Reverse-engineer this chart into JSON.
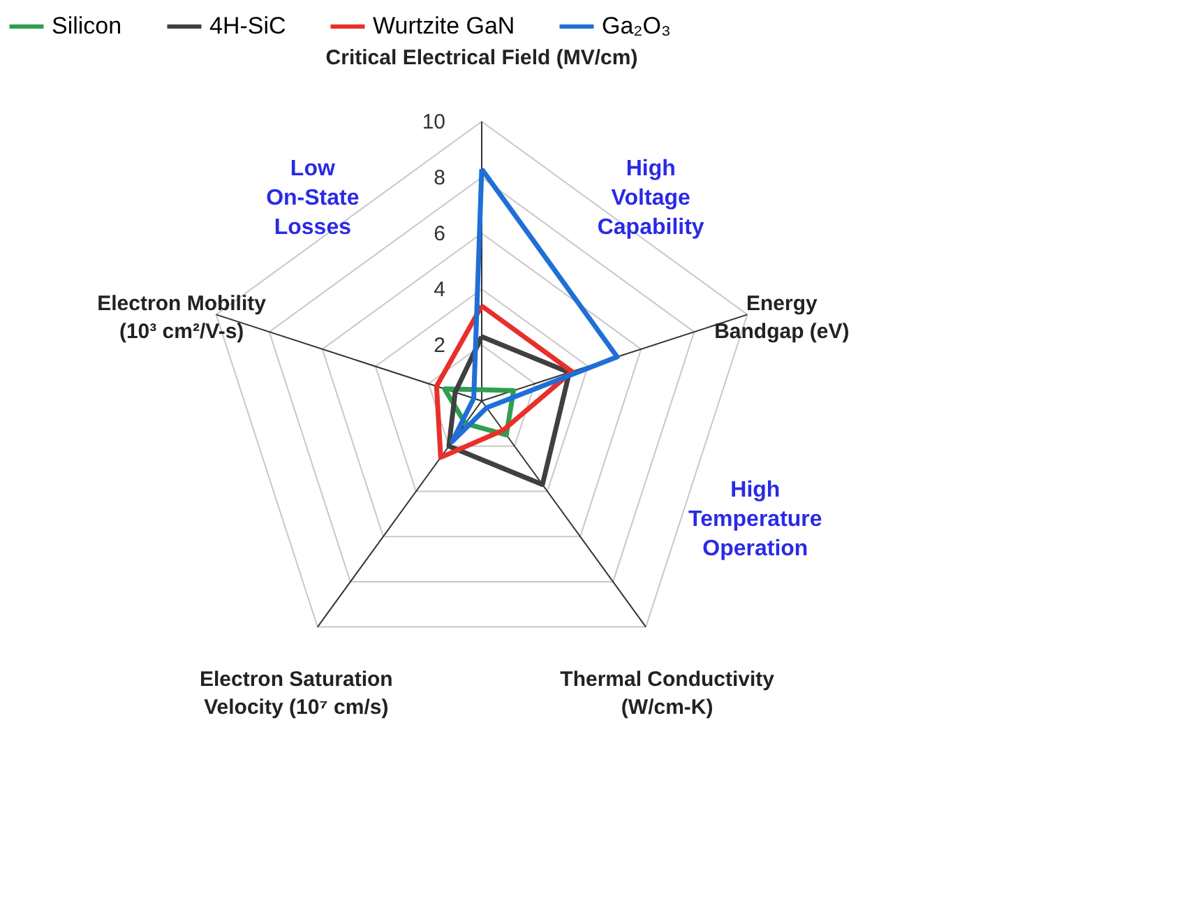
{
  "chart_data": {
    "type": "radar",
    "categories": [
      "Critical Electrical Field (MV/cm)",
      "Energy Bandgap (eV)",
      "Thermal Conductivity (W/cm-K)",
      "Electron Saturation Velocity (10⁷ cm/s)",
      "Electron Mobility (10³ cm²/V-s)"
    ],
    "series": [
      {
        "name": "Silicon",
        "color": "#2e9e4f",
        "values": [
          0.4,
          1.2,
          1.5,
          1.0,
          1.4
        ]
      },
      {
        "name": "4H-SiC",
        "color": "#404040",
        "values": [
          2.3,
          3.3,
          3.7,
          2.0,
          1.0
        ]
      },
      {
        "name": "Wurtzite GaN",
        "color": "#e8302a",
        "values": [
          3.4,
          3.4,
          1.3,
          2.5,
          1.7
        ]
      },
      {
        "name": "Ga₂O₃",
        "color": "#1f6fd6",
        "values": [
          8.3,
          5.1,
          0.3,
          1.8,
          0.3
        ]
      }
    ],
    "ylim": [
      0,
      10
    ],
    "yticks": [
      2,
      4,
      6,
      8,
      10
    ],
    "grid": true,
    "legend": "top",
    "annotations": [
      "Low On-State Losses",
      "High Voltage Capability",
      "High Temperature Operation"
    ]
  }
}
